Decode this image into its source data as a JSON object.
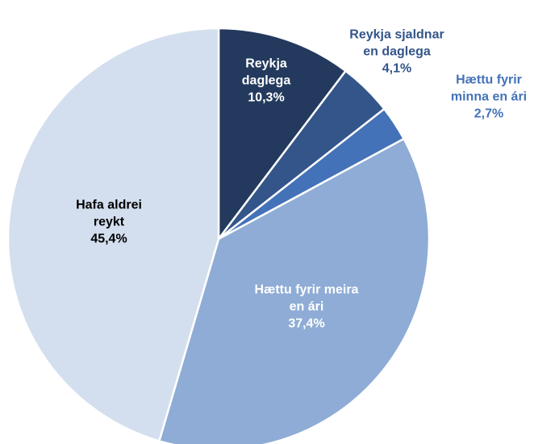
{
  "chart_data": {
    "type": "pie",
    "categories": [
      "Reykja daglega",
      "Reykja sjaldnar en daglega",
      "Hættu fyrir minna en ári",
      "Hættu fyrir meira en ári",
      "Hafa aldrei reykt"
    ],
    "values": [
      10.3,
      4.1,
      2.7,
      37.4,
      45.4
    ],
    "value_labels": [
      "10,3%",
      "4,1%",
      "2,7%",
      "37,4%",
      "45,4%"
    ],
    "colors": [
      "#233a5e",
      "#34558a",
      "#4472b8",
      "#8eacd5",
      "#d3dfee"
    ]
  }
}
